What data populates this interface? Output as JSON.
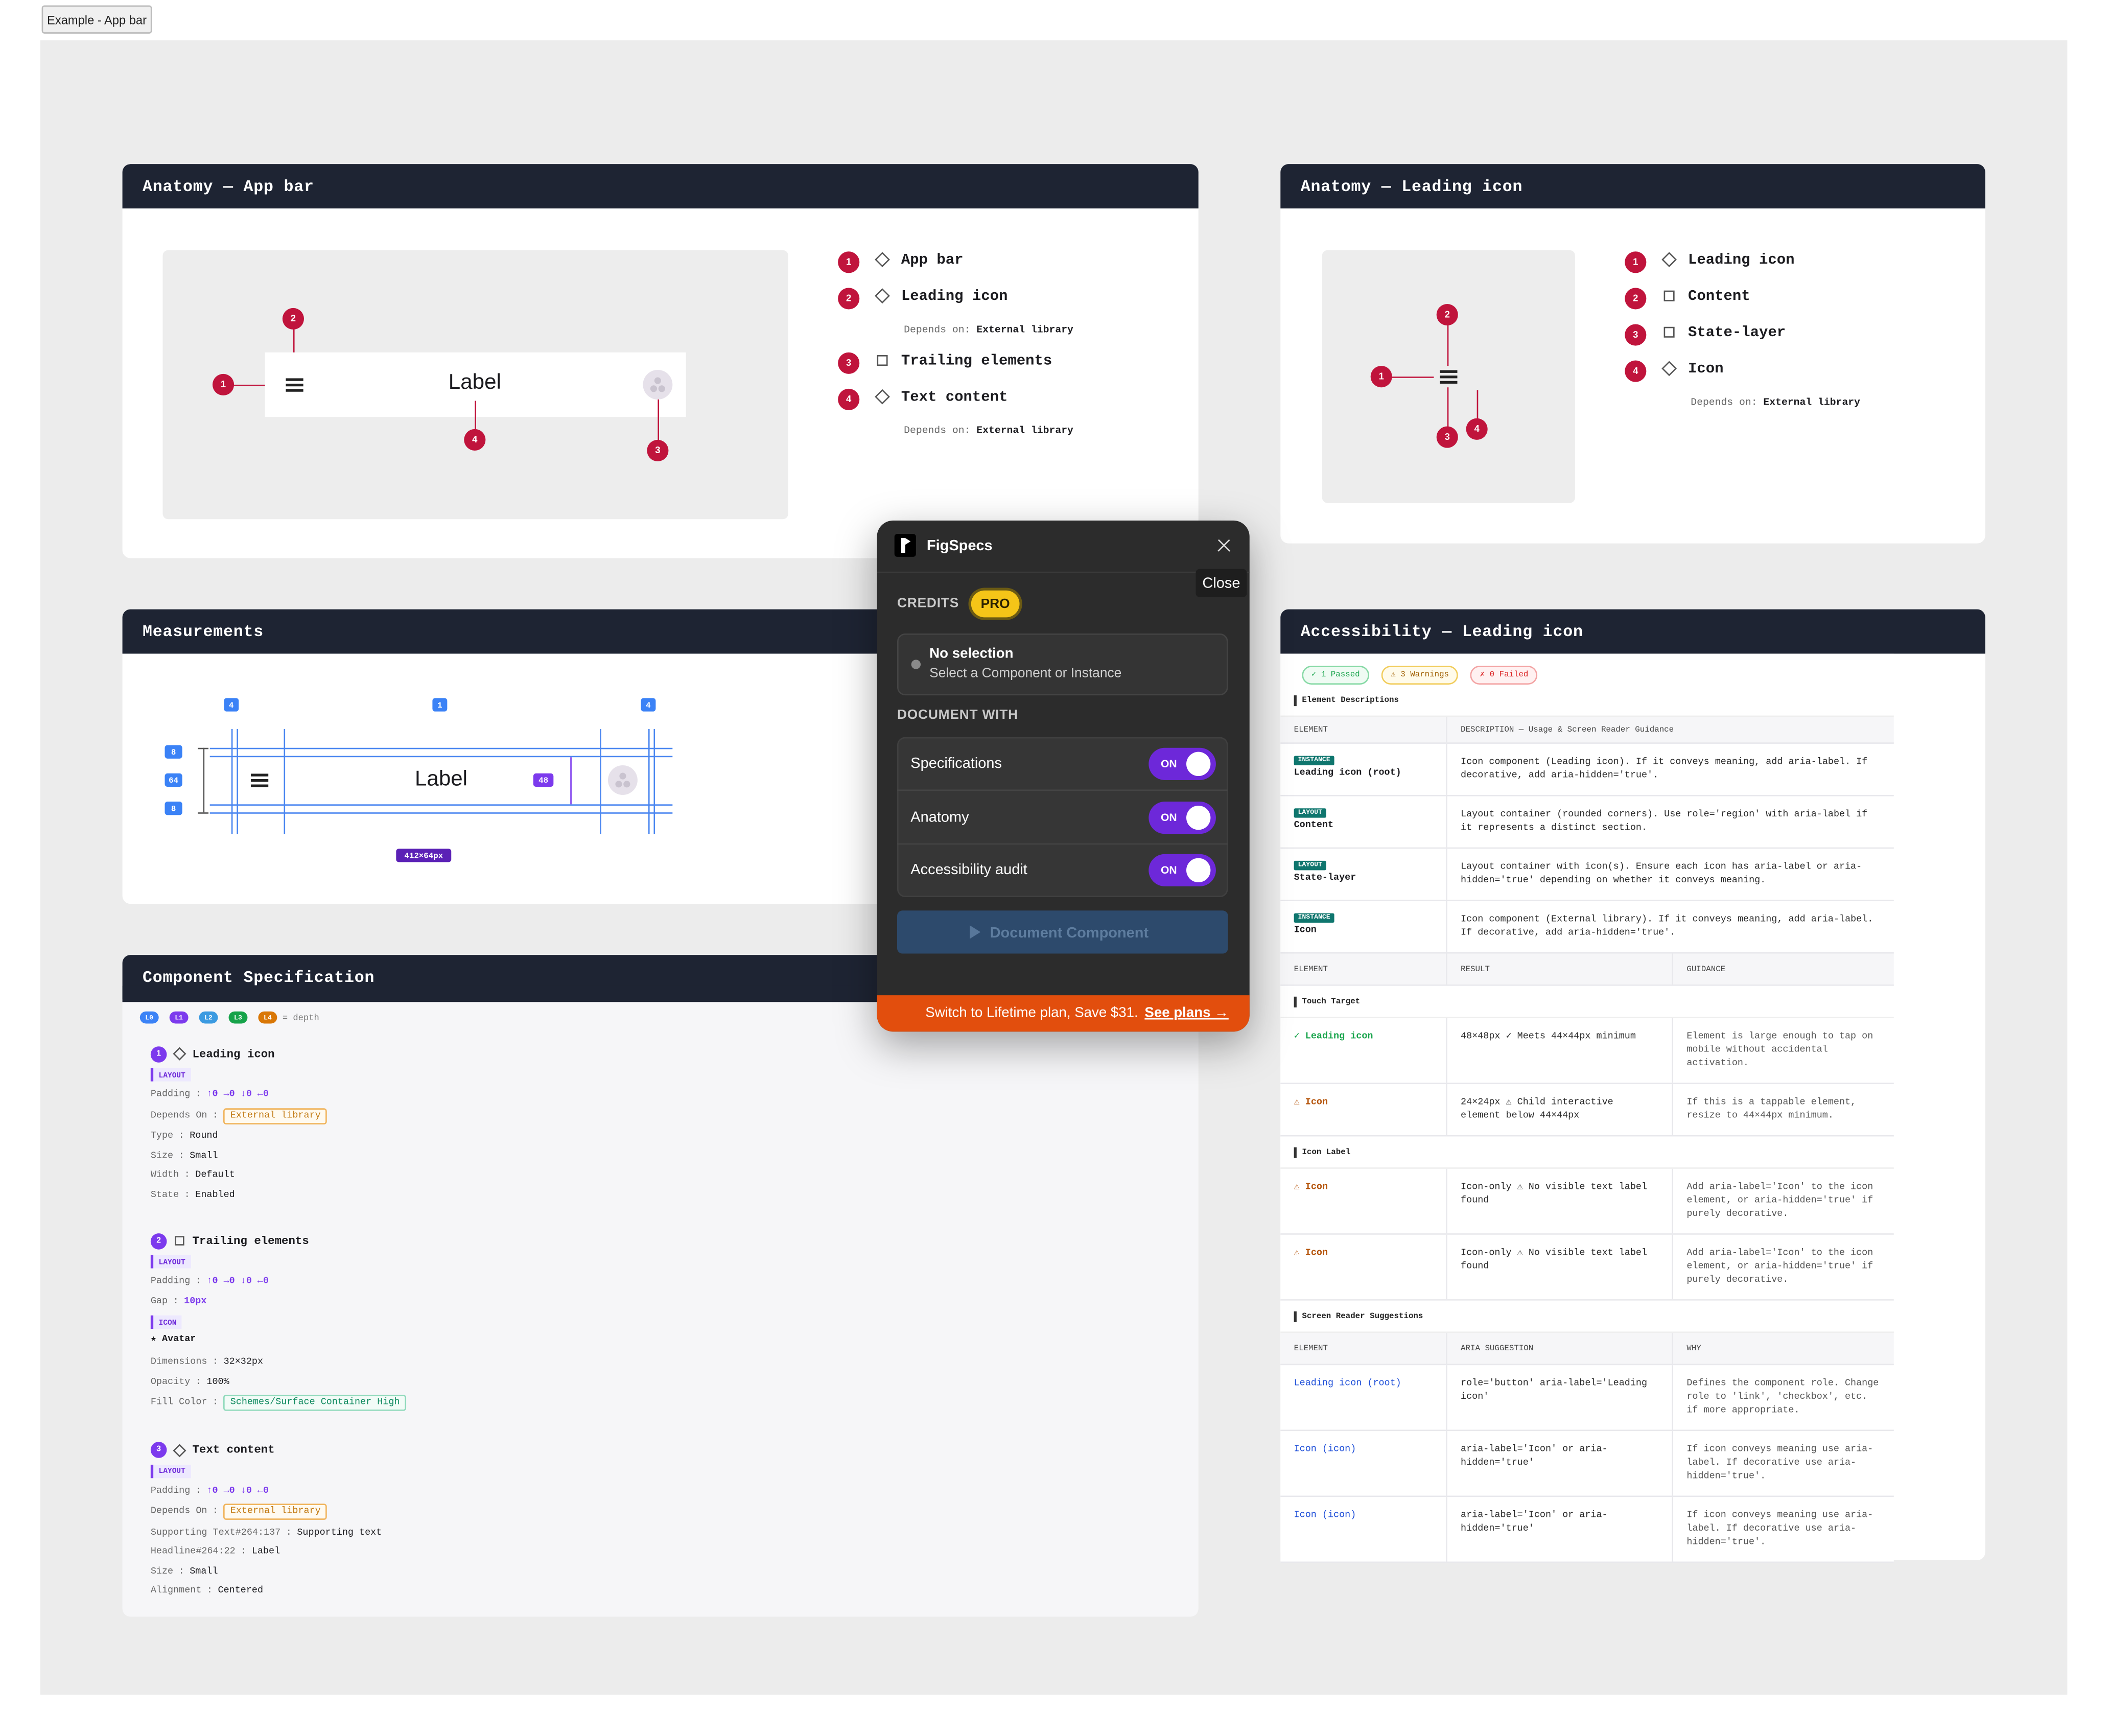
{
  "example_button": "Example - App bar",
  "anatomy_app_bar": {
    "title": "Anatomy — App bar",
    "label": "Label",
    "items": [
      {
        "number": 1,
        "shape": "diamond",
        "name": "App bar"
      },
      {
        "number": 2,
        "shape": "diamond",
        "name": "Leading icon",
        "depends_on": {
          "label": "Depends on:",
          "value": "External library"
        }
      },
      {
        "number": 3,
        "shape": "square",
        "name": "Trailing elements"
      },
      {
        "number": 4,
        "shape": "diamond",
        "name": "Text content",
        "depends_on": {
          "label": "Depends on:",
          "value": "External library"
        }
      }
    ]
  },
  "anatomy_leading_icon": {
    "title": "Anatomy — Leading icon",
    "items": [
      {
        "number": 1,
        "shape": "diamond",
        "name": "Leading icon"
      },
      {
        "number": 2,
        "shape": "square",
        "name": "Content"
      },
      {
        "number": 3,
        "shape": "square",
        "name": "State-layer"
      },
      {
        "number": 4,
        "shape": "diamond",
        "name": "Icon",
        "depends_on": {
          "label": "Depends on:",
          "value": "External library"
        }
      }
    ]
  },
  "measurements": {
    "title": "Measurements",
    "label": "Label",
    "top_badges": [
      4,
      1,
      4
    ],
    "side_badges": [
      8,
      64,
      8
    ],
    "gap_badge": 48,
    "size_badge": "412×64px"
  },
  "component_spec": {
    "title": "Component Specification",
    "depth_chips": [
      "L0",
      "L1",
      "L2",
      "L3",
      "L4"
    ],
    "depth_caption": "= depth",
    "separator": ":",
    "entries": [
      {
        "number": 1,
        "shape": "diamond",
        "name": "Leading icon",
        "rows": [
          {
            "kind": "tag",
            "text": "LAYOUT"
          },
          {
            "kind": "prop",
            "key": "Padding",
            "value": "↑0 →0 ↓0 ←0",
            "style": "accent"
          },
          {
            "kind": "prop",
            "key": "Depends On",
            "value": "External library",
            "style": "chip-orange"
          },
          {
            "kind": "prop",
            "key": "Type",
            "value": "Round",
            "style": "plain"
          },
          {
            "kind": "prop",
            "key": "Size",
            "value": "Small",
            "style": "plain"
          },
          {
            "kind": "prop",
            "key": "Width",
            "value": "Default",
            "style": "plain"
          },
          {
            "kind": "prop",
            "key": "State",
            "value": "Enabled",
            "style": "plain"
          }
        ]
      },
      {
        "number": 2,
        "shape": "square",
        "name": "Trailing elements",
        "rows": [
          {
            "kind": "tag",
            "text": "LAYOUT"
          },
          {
            "kind": "prop",
            "key": "Padding",
            "value": "↑0 →0 ↓0 ←0",
            "style": "accent"
          },
          {
            "kind": "prop",
            "key": "Gap",
            "value": "10px",
            "style": "accent"
          },
          {
            "kind": "tag",
            "text": "ICON"
          },
          {
            "kind": "heading",
            "text": "★ Avatar"
          },
          {
            "kind": "prop",
            "key": "Dimensions",
            "value": "32×32px",
            "style": "plain"
          },
          {
            "kind": "prop",
            "key": "Opacity",
            "value": "100%",
            "style": "plain"
          },
          {
            "kind": "prop",
            "key": "Fill Color",
            "value": "Schemes/Surface Container High",
            "style": "chip-green"
          }
        ]
      },
      {
        "number": 3,
        "shape": "diamond",
        "name": "Text content",
        "rows": [
          {
            "kind": "tag",
            "text": "LAYOUT"
          },
          {
            "kind": "prop",
            "key": "Padding",
            "value": "↑0 →0 ↓0 ←0",
            "style": "accent"
          },
          {
            "kind": "prop",
            "key": "Depends On",
            "value": "External library",
            "style": "chip-orange"
          },
          {
            "kind": "prop",
            "key": "Supporting Text#264:137",
            "value": "Supporting text",
            "style": "plain"
          },
          {
            "kind": "prop",
            "key": "Headline#264:22",
            "value": "Label",
            "style": "plain"
          },
          {
            "kind": "prop",
            "key": "Size",
            "value": "Small",
            "style": "plain"
          },
          {
            "kind": "prop",
            "key": "Alignment",
            "value": "Centered",
            "style": "plain"
          }
        ]
      }
    ]
  },
  "accessibility": {
    "title": "Accessibility — Leading icon",
    "badges": [
      {
        "text": "✓ 1 Passed",
        "status": "pass"
      },
      {
        "text": "⚠ 3 Warnings",
        "status": "warn"
      },
      {
        "text": "✗ 0 Failed",
        "status": "fail"
      }
    ],
    "descriptions": {
      "label": "Element Descriptions",
      "headers": [
        "ELEMENT",
        "DESCRIPTION — Usage & Screen Reader Guidance"
      ],
      "rows": [
        {
          "tag": "INSTANCE",
          "element": "Leading icon (root)",
          "text": "Icon component (Leading icon). If it conveys meaning, add aria-label. If decorative, add aria-hidden='true'."
        },
        {
          "tag": "LAYOUT",
          "element": "Content",
          "text": "Layout container (rounded corners). Use role='region' with aria-label if it represents a distinct section."
        },
        {
          "tag": "LAYOUT",
          "element": "State-layer",
          "text": "Layout container with icon(s). Ensure each icon has aria-label or aria-hidden='true' depending on whether it conveys meaning."
        },
        {
          "tag": "INSTANCE",
          "element": "Icon",
          "text": "Icon component (External library). If it conveys meaning, add aria-label. If decorative, add aria-hidden='true'."
        }
      ]
    },
    "audit_headers": [
      "ELEMENT",
      "RESULT",
      "GUIDANCE"
    ],
    "audits": [
      {
        "label": "Touch Target",
        "rows": [
          {
            "status": "pass",
            "element": "✓ Leading icon",
            "result": "48×48px  ✓ Meets 44×44px minimum",
            "guidance": "Element is large enough to tap on mobile without accidental activation."
          },
          {
            "status": "warn",
            "element": "⚠ Icon",
            "result": "24×24px  ⚠ Child interactive element below 44×44px",
            "guidance": "If this is a tappable element, resize to 44×44px minimum."
          }
        ]
      },
      {
        "label": "Icon Label",
        "rows": [
          {
            "status": "warn",
            "element": "⚠ Icon",
            "result": "Icon-only  ⚠ No visible text label found",
            "guidance": "Add aria-label='Icon' to the icon element, or aria-hidden='true' if purely decorative."
          },
          {
            "status": "warn",
            "element": "⚠ Icon",
            "result": "Icon-only  ⚠ No visible text label found",
            "guidance": "Add aria-label='Icon' to the icon element, or aria-hidden='true' if purely decorative."
          }
        ]
      }
    ],
    "suggestions": {
      "label": "Screen Reader Suggestions",
      "headers": [
        "ELEMENT",
        "ARIA SUGGESTION",
        "WHY"
      ],
      "rows": [
        {
          "element": "Leading icon (root)",
          "aria": "role='button'  aria-label='Leading icon'",
          "why": "Defines the component role. Change role to 'link', 'checkbox', etc. if more appropriate."
        },
        {
          "element": "Icon (icon)",
          "aria": "aria-label='Icon'  or aria-hidden='true'",
          "why": "If icon conveys meaning use aria-label. If decorative use aria-hidden='true'."
        },
        {
          "element": "Icon (icon)",
          "aria": "aria-label='Icon'  or aria-hidden='true'",
          "why": "If icon conveys meaning use aria-label. If decorative use aria-hidden='true'."
        }
      ]
    }
  },
  "popup": {
    "brand": "FigSpecs",
    "close_tooltip": "Close",
    "credits_label": "CREDITS",
    "plan": "PRO",
    "selection_title": "No selection",
    "selection_hint": "Select a Component or Instance",
    "document_with": "DOCUMENT WITH",
    "toggles": [
      {
        "label": "Specifications",
        "state": "ON"
      },
      {
        "label": "Anatomy",
        "state": "ON"
      },
      {
        "label": "Accessibility audit",
        "state": "ON"
      }
    ],
    "button": "Document Component",
    "promo": "Switch to Lifetime plan, Save $31.",
    "promo_link": "See plans →"
  }
}
